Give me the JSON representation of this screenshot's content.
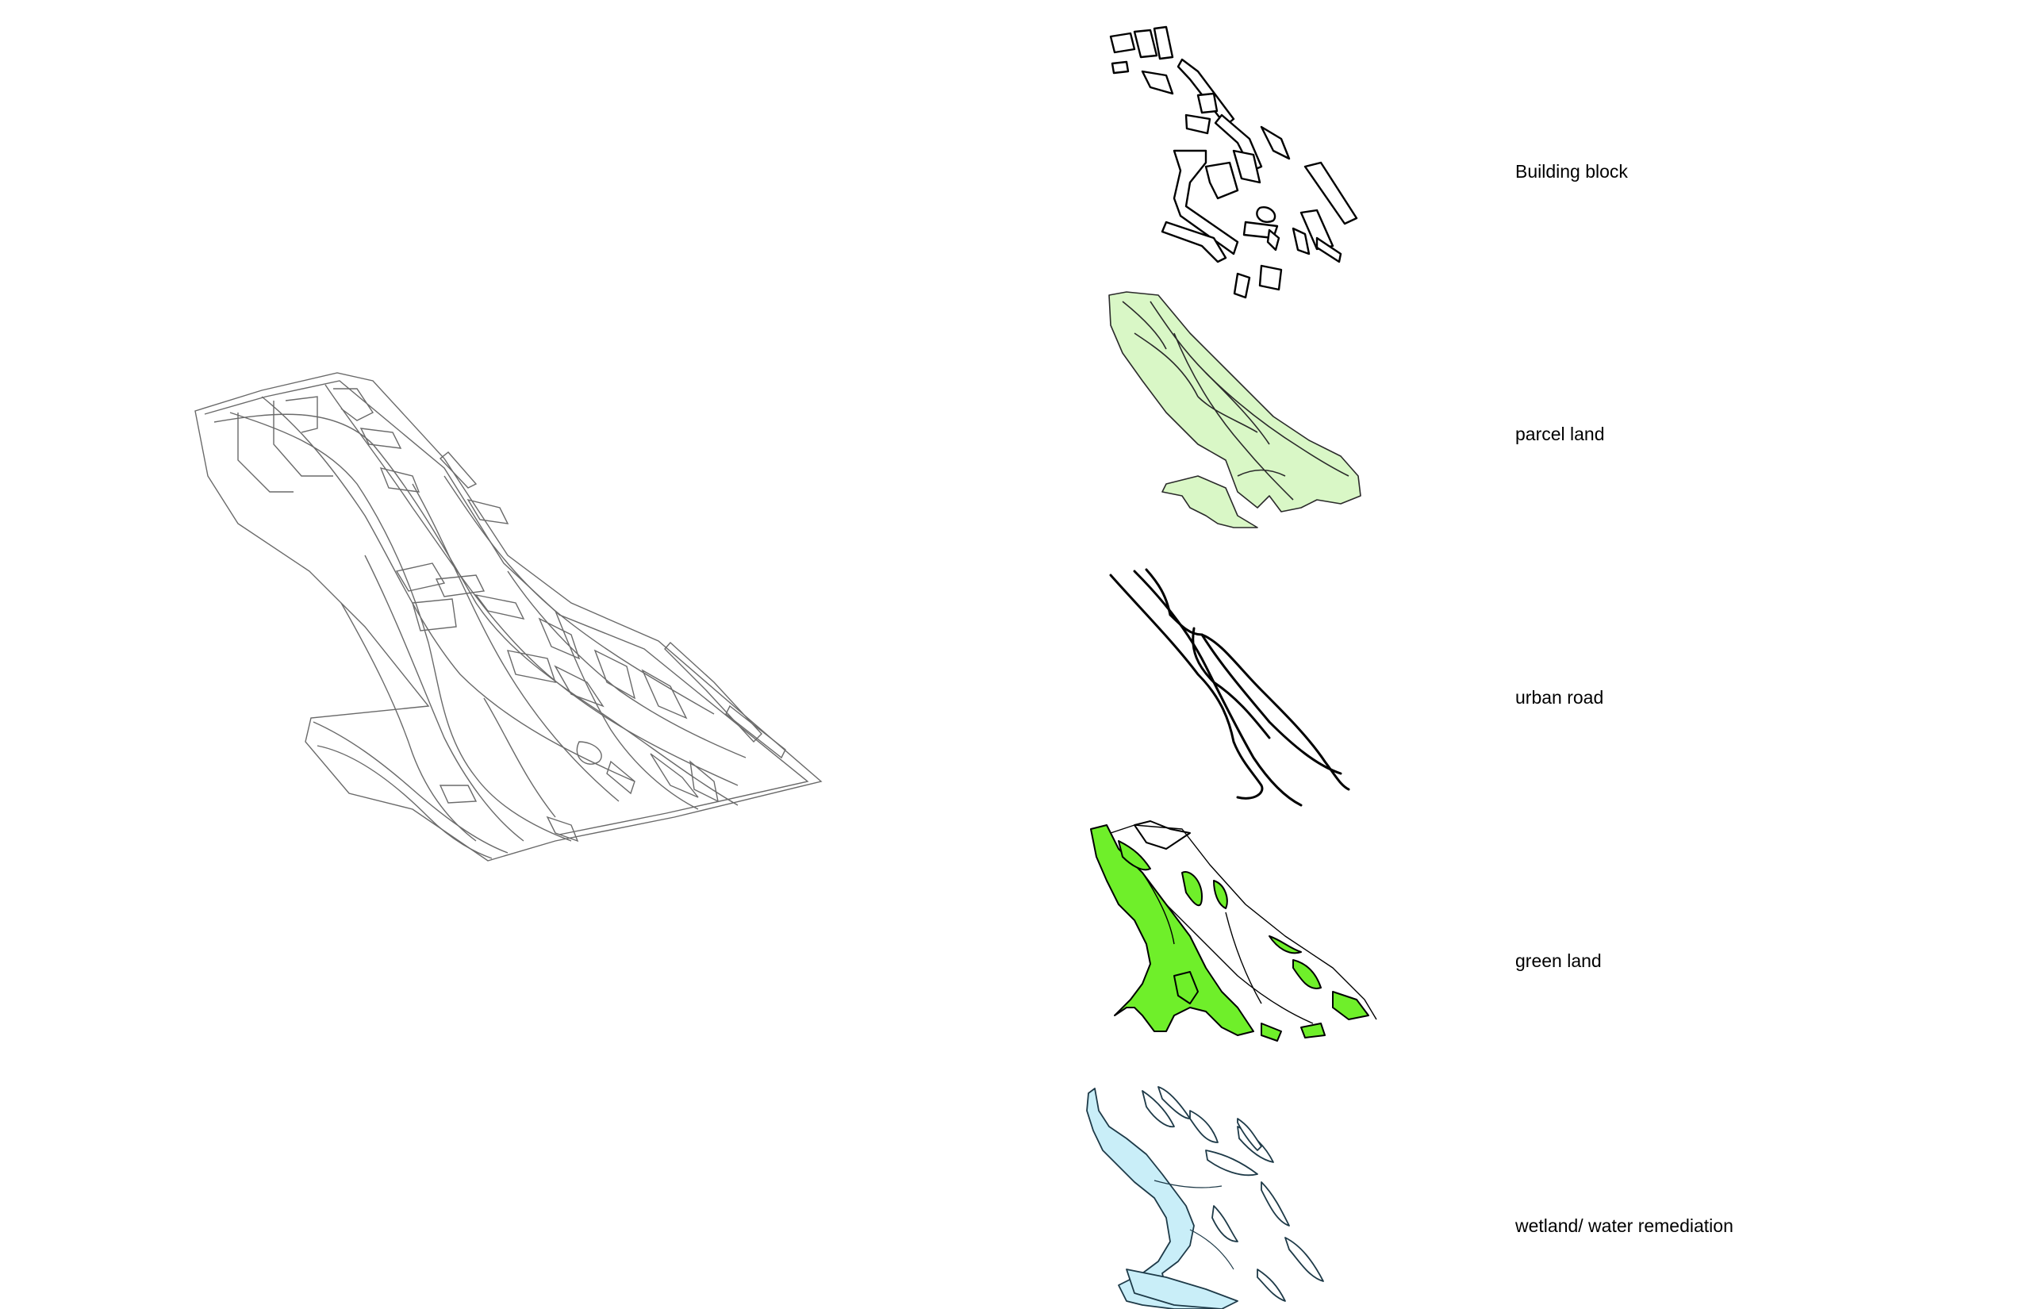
{
  "layers": [
    {
      "id": "building",
      "label": "Building block",
      "color": "#000000"
    },
    {
      "id": "parcel",
      "label": "parcel land",
      "color": "#d9f7c6"
    },
    {
      "id": "road",
      "label": "urban road",
      "color": "#000000"
    },
    {
      "id": "green",
      "label": "green land",
      "color": "#6fef2a"
    },
    {
      "id": "wetland",
      "label": "wetland/ water remediation",
      "color": "#c9eef8"
    }
  ]
}
